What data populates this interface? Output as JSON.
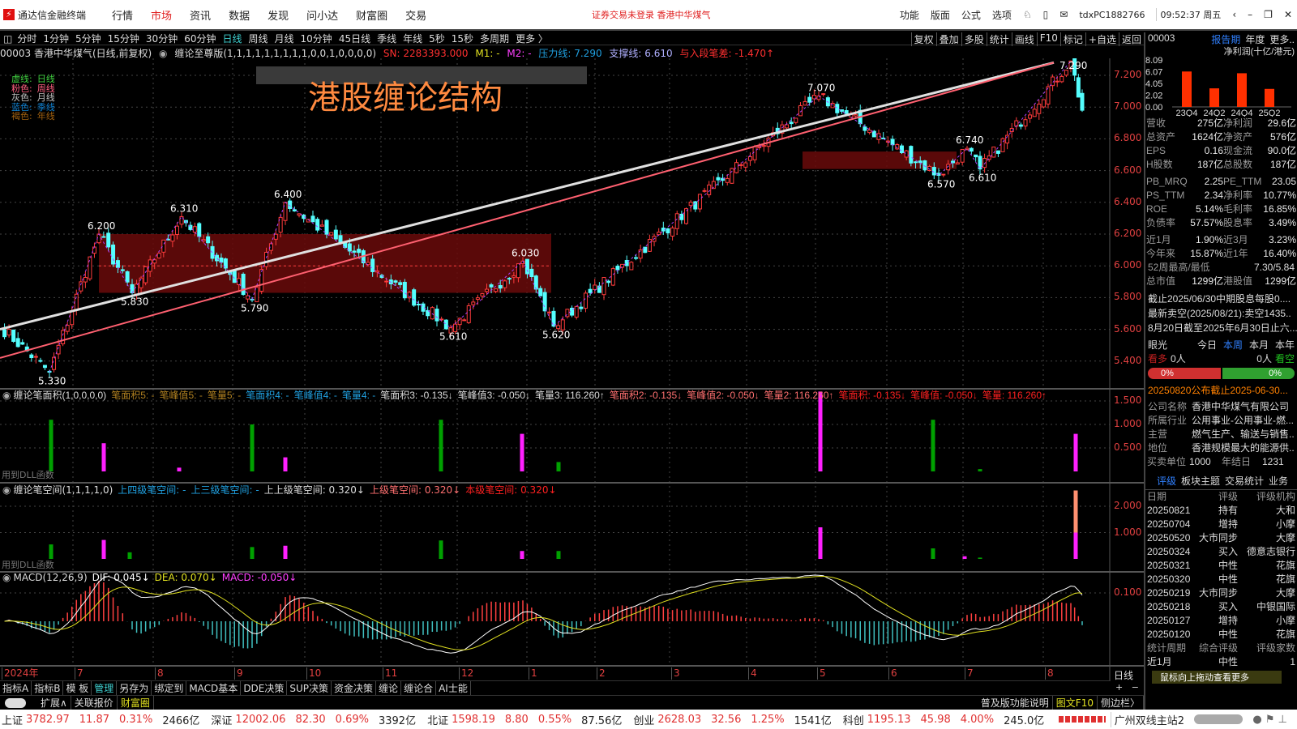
{
  "app": {
    "title": "通达信金融终端",
    "menus": [
      "行情",
      "市场",
      "资讯",
      "数据",
      "发现",
      "问小达",
      "财富圈",
      "交易"
    ],
    "active_menu": "市场",
    "notice": "证券交易未登录  香港中华煤气",
    "right_menus": [
      "功能",
      "版面",
      "公式",
      "选项"
    ],
    "account": "tdxPC1882766",
    "clock": "09:52:37 周五"
  },
  "periods": [
    "分时",
    "1分钟",
    "5分钟",
    "15分钟",
    "30分钟",
    "60分钟",
    "日线",
    "周线",
    "月线",
    "10分钟",
    "45日线",
    "季线",
    "年线",
    "5秒",
    "15秒",
    "多周期",
    "更多 〉"
  ],
  "selected_period": "日线",
  "tools": [
    "复权",
    "叠加",
    "多股",
    "统计",
    "画线",
    "F10",
    "标记",
    "+自选",
    "返回"
  ],
  "info": {
    "code_name": "00003 香港中华煤气(日线,前复权)",
    "indicator": "缠论至尊版(1,1,1,1,1,1,1,1,1,0,0,1,0,0,0,0)",
    "sn": "SN: 2283393.000",
    "m1": "M1: -",
    "m2": "M2: -",
    "pressure": "压力线: 7.290",
    "support": "支撑线: 6.610",
    "diff": "与入段笔差: -1.470↑"
  },
  "legend": [
    {
      "k": "虚线:",
      "v": "日线",
      "color": "#40d040"
    },
    {
      "k": "粉色:",
      "v": "周线",
      "color": "#ff6080"
    },
    {
      "k": "灰色:",
      "v": "月线",
      "color": "#c0c0c0"
    },
    {
      "k": "蓝色:",
      "v": "季线",
      "color": "#1080d0"
    },
    {
      "k": "褐色:",
      "v": "年线",
      "color": "#a06010"
    }
  ],
  "overlay_title": "港股缠论结构",
  "price_axis": [
    "7.200",
    "7.000",
    "6.800",
    "6.600",
    "6.400",
    "6.200",
    "6.000",
    "5.800",
    "5.600",
    "5.400"
  ],
  "pivots": [
    {
      "label": "5.330",
      "p": 5.33
    },
    {
      "label": "6.200",
      "p": 6.2
    },
    {
      "label": "5.830",
      "p": 5.83
    },
    {
      "label": "6.310",
      "p": 6.31
    },
    {
      "label": "5.790",
      "p": 5.79
    },
    {
      "label": "6.400",
      "p": 6.4
    },
    {
      "label": "5.610",
      "p": 5.61
    },
    {
      "label": "6.030",
      "p": 6.03
    },
    {
      "label": "5.620",
      "p": 5.62
    },
    {
      "label": "7.070",
      "p": 7.07
    },
    {
      "label": "6.570",
      "p": 6.57
    },
    {
      "label": "6.740",
      "p": 6.74
    },
    {
      "label": "6.610",
      "p": 6.61
    },
    {
      "label": "7.290",
      "p": 7.29
    }
  ],
  "colors": {
    "up": "#ff3c3c",
    "down": "#54ffff",
    "white_line": "#e0e0e0",
    "pink_line": "#ff6070",
    "box": "#6a0a0a",
    "green_bar": "#00a000",
    "pink_bar": "#ff20ff"
  },
  "ind1": {
    "head": [
      {
        "t": "缠论笔面积(1,0,0,0,0)",
        "c": "#ddd"
      },
      {
        "t": "笔面积5: -",
        "c": "#b08020"
      },
      {
        "t": "笔峰值5: -",
        "c": "#b08020"
      },
      {
        "t": "笔量5: -",
        "c": "#b08020"
      },
      {
        "t": "笔面积4: -",
        "c": "#20a0e0"
      },
      {
        "t": "笔峰值4: -",
        "c": "#20a0e0"
      },
      {
        "t": "笔量4: -",
        "c": "#20a0e0"
      },
      {
        "t": "笔面积3: -0.135↓",
        "c": "#ddd"
      },
      {
        "t": "笔峰值3: -0.050↓",
        "c": "#ddd"
      },
      {
        "t": "笔量3: 116.260↑",
        "c": "#ddd"
      },
      {
        "t": "笔面积2: -0.135↓",
        "c": "#ff7070"
      },
      {
        "t": "笔峰值2: -0.050↓",
        "c": "#ff7070"
      },
      {
        "t": "笔量2: 116.260↑",
        "c": "#ff7070"
      },
      {
        "t": "笔面积: -0.135↓",
        "c": "#ff2020"
      },
      {
        "t": "笔峰值: -0.050↓",
        "c": "#ff2020"
      },
      {
        "t": "笔量: 116.260↑",
        "c": "#ff2020"
      }
    ],
    "axis": [
      "1.500",
      "1.000",
      "0.500"
    ],
    "note": "用到DLL函数",
    "bars": [
      1.1,
      0.6,
      0.08,
      1.0,
      0.3,
      1.1,
      0.8,
      0.2,
      1.7,
      1.1,
      0.05,
      0.8
    ]
  },
  "ind2": {
    "head": [
      {
        "t": "缠论笔空间(1,1,1,1,0)",
        "c": "#ddd"
      },
      {
        "t": "上四级笔空间: -",
        "c": "#20a0e0"
      },
      {
        "t": "上三级笔空间: -",
        "c": "#20a0e0"
      },
      {
        "t": "上上级笔空间: 0.320↓",
        "c": "#ddd"
      },
      {
        "t": "上级笔空间: 0.320↓",
        "c": "#ff7070"
      },
      {
        "t": "本级笔空间: 0.320↓",
        "c": "#ff2020"
      }
    ],
    "axis": [
      "2.000",
      "1.000"
    ],
    "note": "用到DLL函数",
    "bars": [
      0.55,
      0.72,
      0.25,
      0.45,
      0.5,
      0.7,
      0.3,
      0.3,
      1.2,
      0.4,
      0.1,
      0.05,
      1.0
    ]
  },
  "macd": {
    "head": [
      {
        "t": "MACD(12,26,9)",
        "c": "#ddd"
      },
      {
        "t": "DIF: 0.045↓",
        "c": "#fff"
      },
      {
        "t": "DEA: 0.070↓",
        "c": "#e0e020"
      },
      {
        "t": "MACD: -0.050↓",
        "c": "#ff40ff"
      }
    ],
    "axis": [
      "0.100"
    ]
  },
  "months": [
    "2024年",
    "7",
    "8",
    "9",
    "10",
    "11",
    "12",
    "1",
    "2",
    "3",
    "4",
    "5",
    "6",
    "7",
    "8"
  ],
  "period_label": "日线",
  "bottom1": [
    "指标A",
    "指标B",
    "模 板",
    "管理",
    "另存为",
    "绑定到",
    "MACD基本",
    "DDE决策",
    "SUP决策",
    "资金决策",
    "缠论",
    "缠论合",
    "AI士能"
  ],
  "bottom2": [
    "扩展∧",
    "关联报价",
    "财富圈"
  ],
  "bottom2_right": [
    "普及版功能说明",
    "图文F10",
    "侧边栏〉"
  ],
  "right": {
    "code": "00003",
    "tabs": [
      "报告期",
      "年度",
      "更多.."
    ],
    "chart_title": "净利润(十亿/港元)",
    "chart_axis": [
      "8.09",
      "6.07",
      "4.05",
      "2.02",
      "0.00"
    ],
    "chart": {
      "type": "bar",
      "categories": [
        "23Q4",
        "24Q2",
        "24Q4",
        "25Q2"
      ],
      "values": [
        6.1,
        3.2,
        5.8,
        3.1
      ],
      "ylim": [
        0,
        8.09
      ]
    },
    "fund1": [
      [
        "营收",
        "275亿",
        "净利润",
        "29.6亿"
      ],
      [
        "总资产",
        "1624亿",
        "净资产",
        "576亿"
      ],
      [
        "EPS",
        "0.16",
        "现金流",
        "90.0亿"
      ],
      [
        "H股数",
        "187亿",
        "总股数",
        "187亿"
      ]
    ],
    "fund2": [
      [
        "PB_MRQ",
        "2.25",
        "PE_TTM",
        "23.05"
      ],
      [
        "PS_TTM",
        "2.34",
        "净利率",
        "10.77%"
      ],
      [
        "ROE",
        "5.14%",
        "毛利率",
        "16.85%"
      ],
      [
        "负债率",
        "57.57%",
        "股息率",
        "3.49%"
      ]
    ],
    "fund3": [
      [
        "近1月",
        "1.90%",
        "近3月",
        "3.23%"
      ],
      [
        "今年来",
        "15.87%",
        "近1年",
        "16.40%"
      ]
    ],
    "high_low": [
      "52周最高/最低",
      "7.30/5.84"
    ],
    "mcap": [
      "总市值",
      "1299亿",
      "港股值",
      "1299亿"
    ],
    "news": [
      "截止2025/06/30中期股息每股0....",
      "最新卖空(2025/08/21):卖空1435..",
      "8月20日截至2025年6月30日止六..."
    ],
    "vision": {
      "label": "眼光",
      "tabs": [
        "今日",
        "本周",
        "本月",
        "本年"
      ],
      "bull": "看多",
      "bull_n": "0人",
      "bear": "看空",
      "bear_n": "0人",
      "bull_pct": "0%",
      "bear_pct": "0%"
    },
    "announce": "20250820公布截止2025-06-30...",
    "profile": [
      [
        "公司名称",
        "香港中华煤气有限公司"
      ],
      [
        "所属行业",
        "公用事业-公用事业-燃..."
      ],
      [
        "主营",
        "燃气生产、输送与销售..."
      ],
      [
        "地位",
        "香港规模最大的能源供..."
      ]
    ],
    "unit": [
      "买卖单位",
      "1000",
      "年结日",
      "1231"
    ],
    "rtabs": [
      "评级",
      "板块主题",
      "交易统计",
      "业务"
    ],
    "rating_head": [
      "日期",
      "评级",
      "评级机构"
    ],
    "ratings": [
      [
        "20250821",
        "持有",
        "大和"
      ],
      [
        "20250704",
        "增持",
        "小摩"
      ],
      [
        "20250520",
        "大市同步",
        "大摩"
      ],
      [
        "20250324",
        "买入",
        "德意志银行"
      ],
      [
        "20250321",
        "中性",
        "花旗"
      ],
      [
        "20250320",
        "中性",
        "花旗"
      ],
      [
        "20250219",
        "大市同步",
        "大摩"
      ],
      [
        "20250218",
        "买入",
        "中银国际"
      ],
      [
        "20250127",
        "增持",
        "小摩"
      ],
      [
        "20250120",
        "中性",
        "花旗"
      ]
    ],
    "stat_head": [
      "统计周期",
      "综合评级",
      "评级家数"
    ],
    "stat_row": [
      "近1月",
      "中性",
      "1"
    ],
    "drag_tip": "鼠标向上拖动查看更多"
  },
  "quotes": [
    {
      "n": "上证",
      "p": "3782.97",
      "c": "11.87",
      "pc": "0.31%",
      "a": "2466亿"
    },
    {
      "n": "深证",
      "p": "12002.06",
      "c": "82.30",
      "pc": "0.69%",
      "a": "3392亿"
    },
    {
      "n": "北证",
      "p": "1598.19",
      "c": "8.80",
      "pc": "0.55%",
      "a": "87.56亿"
    },
    {
      "n": "创业",
      "p": "2628.03",
      "c": "32.56",
      "pc": "1.25%",
      "a": "1541亿"
    },
    {
      "n": "科创",
      "p": "1195.13",
      "c": "45.98",
      "pc": "4.00%",
      "a": "245.0亿"
    }
  ],
  "server": "广州双线主站2"
}
